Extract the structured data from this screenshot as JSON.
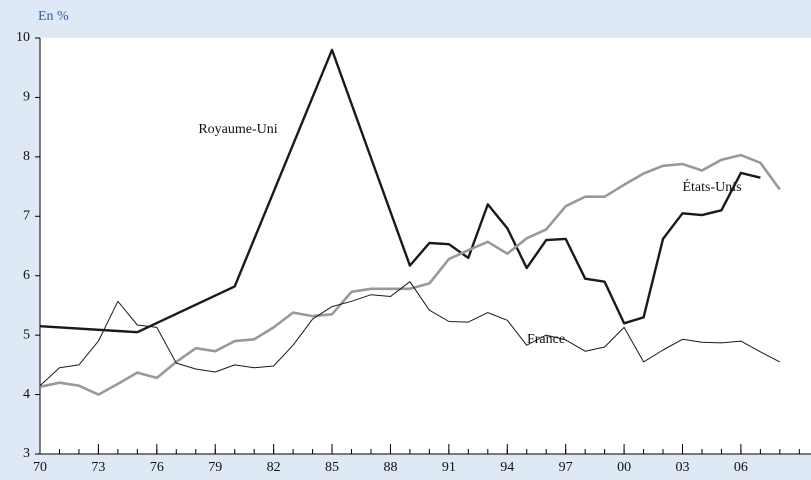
{
  "chart_data": {
    "type": "line",
    "ylabel": "En %",
    "xlim": [
      1970,
      2009.6
    ],
    "ylim": [
      3,
      10
    ],
    "xticks": [
      {
        "value": 1970,
        "label": "70"
      },
      {
        "value": 1973,
        "label": "73"
      },
      {
        "value": 1976,
        "label": "76"
      },
      {
        "value": 1979,
        "label": "79"
      },
      {
        "value": 1982,
        "label": "82"
      },
      {
        "value": 1985,
        "label": "85"
      },
      {
        "value": 1988,
        "label": "88"
      },
      {
        "value": 1991,
        "label": "91"
      },
      {
        "value": 1994,
        "label": "94"
      },
      {
        "value": 1997,
        "label": "97"
      },
      {
        "value": 2000,
        "label": "00"
      },
      {
        "value": 2003,
        "label": "03"
      },
      {
        "value": 2006,
        "label": "06"
      }
    ],
    "yticks": [
      3,
      4,
      5,
      6,
      7,
      8,
      9,
      10
    ],
    "series": [
      {
        "name": "Royaume-Uni",
        "color": "#1a1a1a",
        "width": 2.4,
        "x": [
          1970,
          1975,
          1980,
          1985,
          1989,
          1990,
          1991,
          1992,
          1993,
          1994,
          1995,
          1996,
          1997,
          1998,
          1999,
          2000,
          2001,
          2002,
          2003,
          2004,
          2005,
          2006,
          2007
        ],
        "values": [
          5.15,
          5.05,
          5.82,
          9.8,
          6.17,
          6.55,
          6.53,
          6.3,
          7.2,
          6.8,
          6.13,
          6.6,
          6.62,
          5.95,
          5.9,
          5.2,
          5.3,
          6.62,
          7.05,
          7.02,
          7.1,
          7.73,
          7.65
        ]
      },
      {
        "name": "États-Unis",
        "color": "#999999",
        "width": 2.6,
        "x": [
          1970,
          1971,
          1972,
          1973,
          1974,
          1975,
          1976,
          1977,
          1978,
          1979,
          1980,
          1981,
          1982,
          1983,
          1984,
          1985,
          1986,
          1987,
          1988,
          1989,
          1990,
          1991,
          1992,
          1993,
          1994,
          1995,
          1996,
          1997,
          1998,
          1999,
          2000,
          2001,
          2002,
          2003,
          2004,
          2005,
          2006,
          2007,
          2008
        ],
        "values": [
          4.13,
          4.2,
          4.15,
          4.0,
          4.18,
          4.37,
          4.28,
          4.55,
          4.78,
          4.73,
          4.9,
          4.93,
          5.13,
          5.38,
          5.32,
          5.35,
          5.73,
          5.78,
          5.78,
          5.78,
          5.87,
          6.28,
          6.43,
          6.57,
          6.37,
          6.63,
          6.78,
          7.17,
          7.33,
          7.33,
          7.53,
          7.72,
          7.85,
          7.88,
          7.77,
          7.95,
          8.03,
          7.9,
          7.45
        ]
      },
      {
        "name": "France",
        "color": "#1a1a1a",
        "width": 1,
        "x": [
          1970,
          1971,
          1972,
          1973,
          1974,
          1975,
          1976,
          1977,
          1978,
          1979,
          1980,
          1981,
          1982,
          1983,
          1984,
          1985,
          1986,
          1987,
          1988,
          1989,
          1990,
          1991,
          1992,
          1993,
          1994,
          1995,
          1996,
          1997,
          1998,
          1999,
          2000,
          2001,
          2002,
          2003,
          2004,
          2005,
          2006,
          2007,
          2008
        ],
        "values": [
          4.15,
          4.45,
          4.5,
          4.9,
          5.57,
          5.17,
          5.13,
          4.53,
          4.43,
          4.38,
          4.5,
          4.45,
          4.48,
          4.83,
          5.27,
          5.48,
          5.57,
          5.68,
          5.65,
          5.9,
          5.42,
          5.23,
          5.22,
          5.38,
          5.25,
          4.83,
          5.0,
          4.92,
          4.73,
          4.8,
          5.13,
          4.55,
          4.75,
          4.93,
          4.88,
          4.87,
          4.9,
          4.72,
          4.55
        ]
      }
    ]
  }
}
